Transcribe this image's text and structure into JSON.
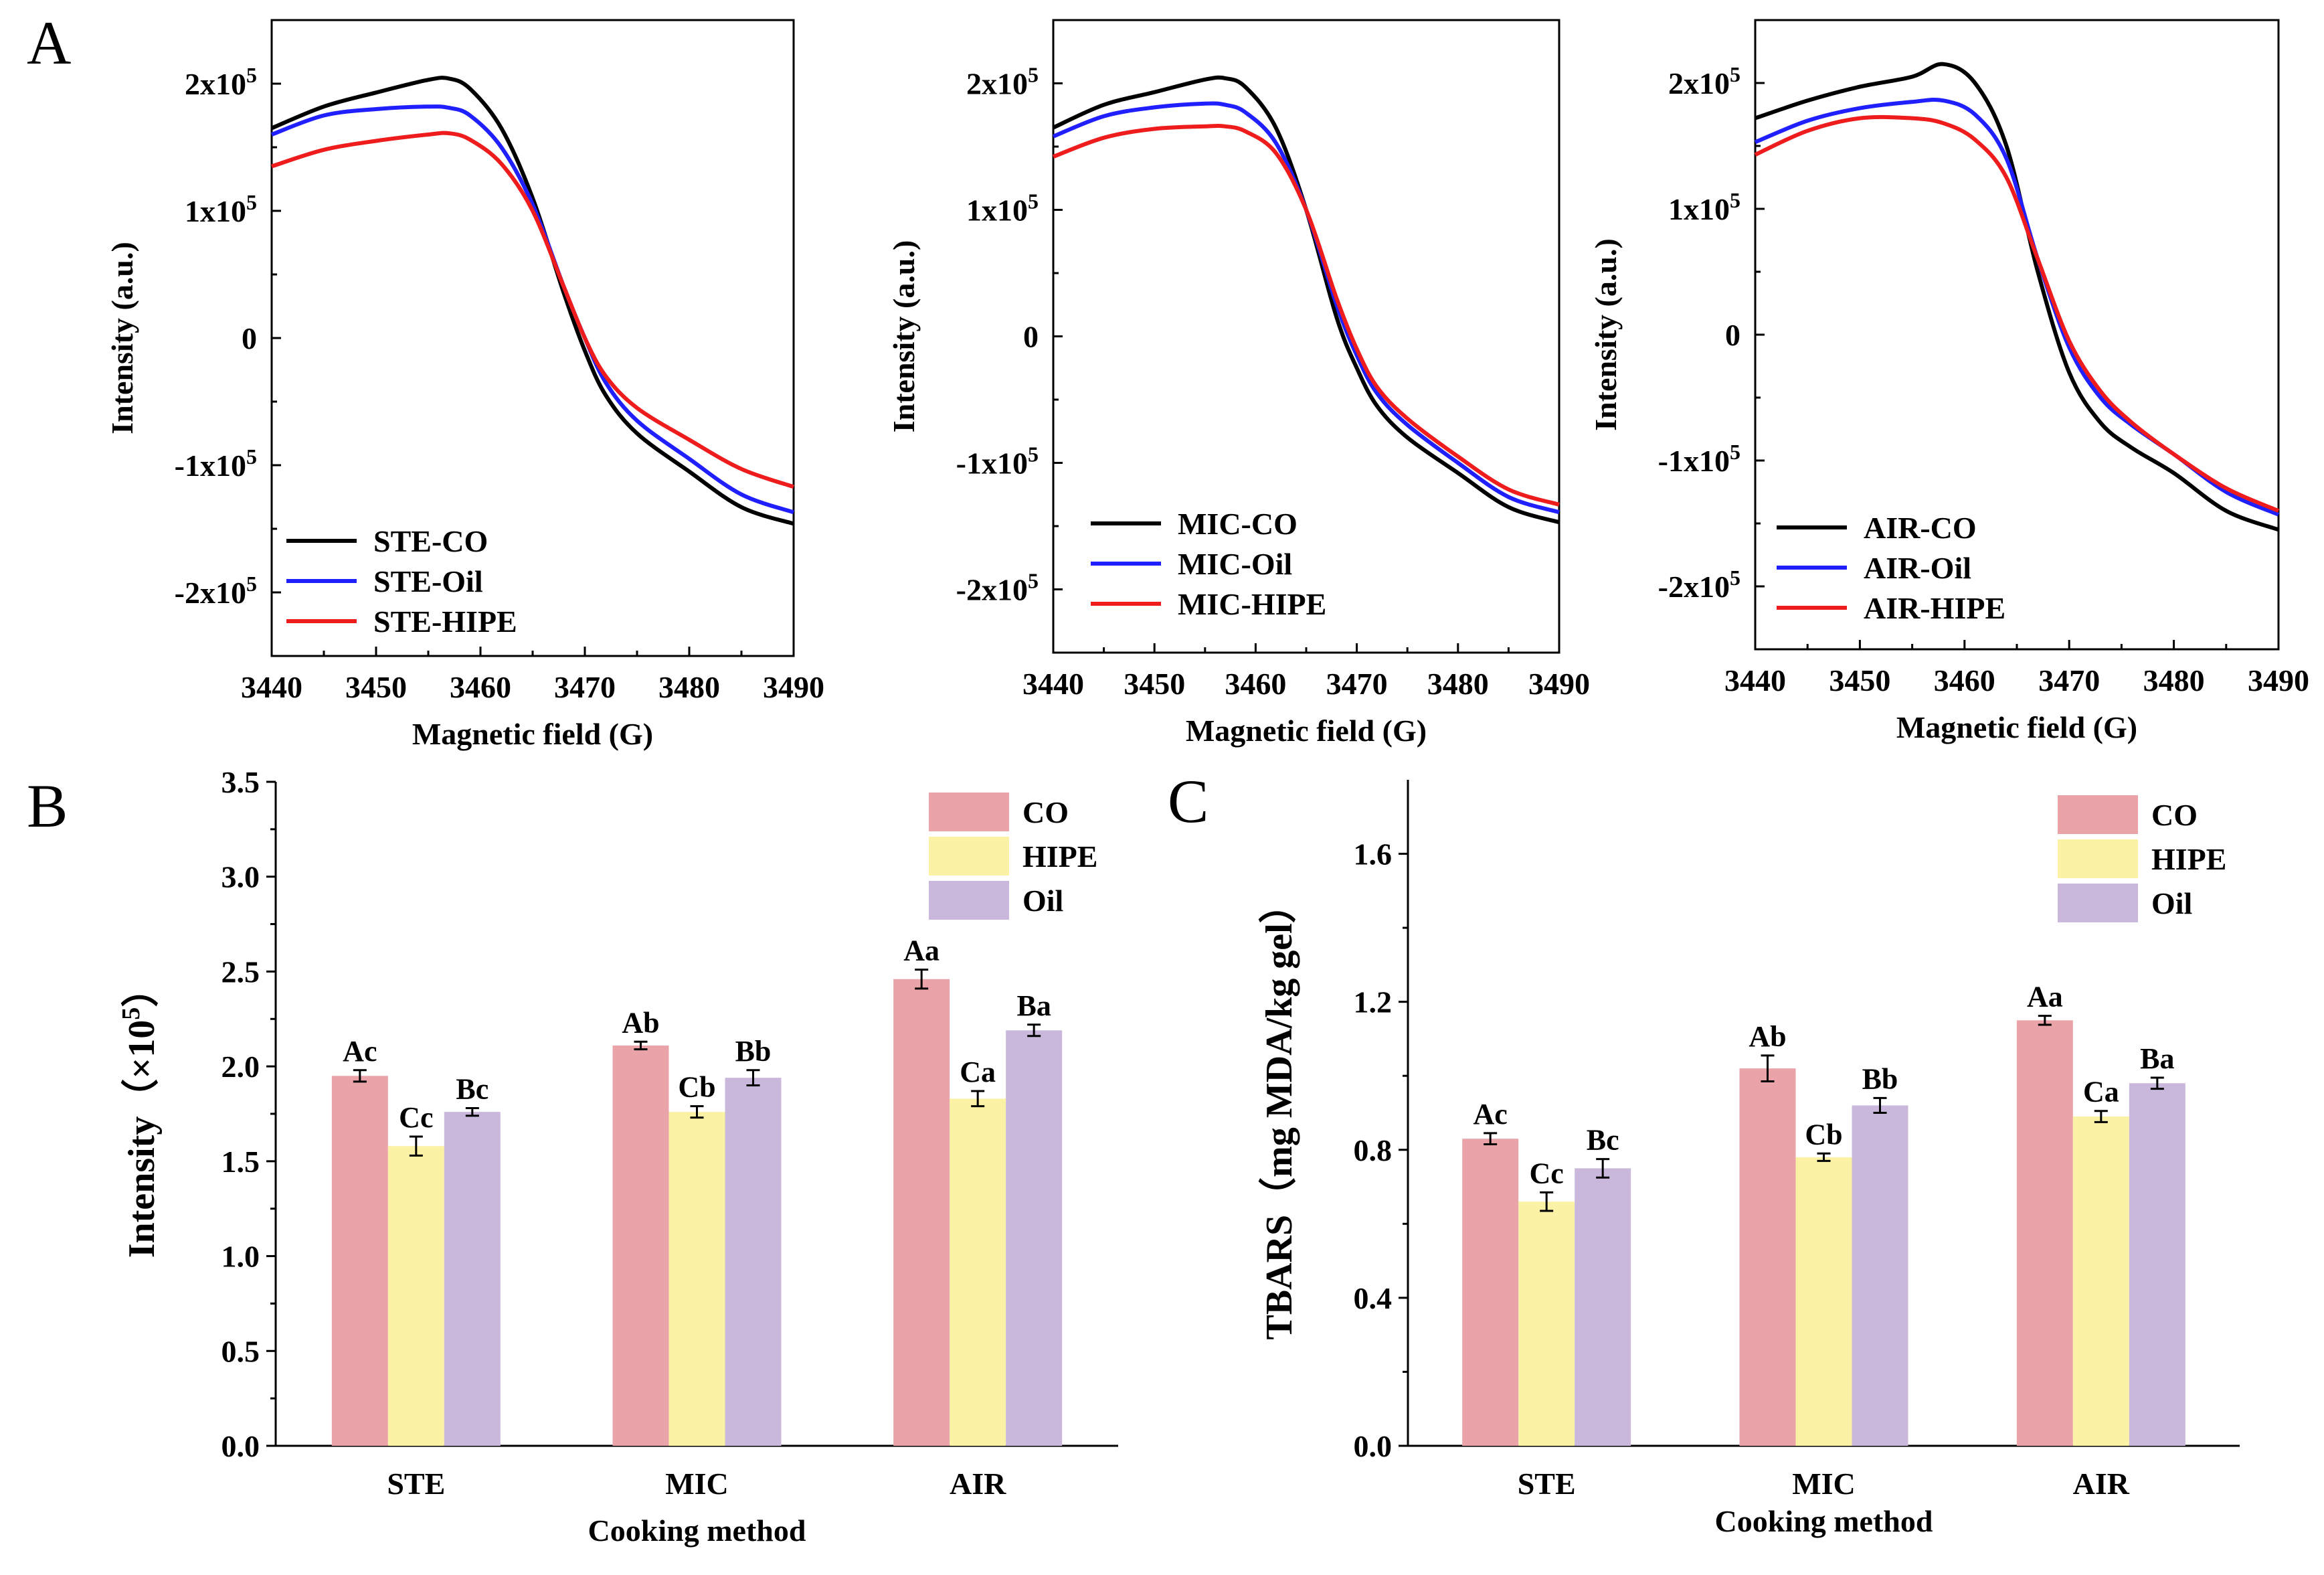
{
  "panel_labels": [
    "A",
    "B",
    "C"
  ],
  "colors": {
    "CO_line": "#000000",
    "Oil_line": "#1f1fff",
    "HIPE_line": "#ee1c1c",
    "CO_bar": "#eaa3a8",
    "HIPE_bar": "#fbf2a6",
    "Oil_bar": "#c9b8db"
  },
  "chart_data": [
    {
      "type": "line",
      "panel": "A",
      "xlabel": "Magnetic field (G)",
      "ylabel": "Intensity (a.u.)",
      "xlim": [
        3440,
        3490
      ],
      "ylim": [
        -250000,
        250000
      ],
      "xticks": [
        3440,
        3450,
        3460,
        3470,
        3480,
        3490
      ],
      "xtick_labels": [
        "3440",
        "3450",
        "3460",
        "3470",
        "3480",
        "3490"
      ],
      "yticks": [
        -200000,
        -100000,
        0,
        100000,
        200000
      ],
      "ytick_labels": [
        {
          "mant": "-2x10",
          "exp": "5"
        },
        {
          "mant": "-1x10",
          "exp": "5"
        },
        {
          "mant": "0",
          "exp": ""
        },
        {
          "mant": "1x10",
          "exp": "5"
        },
        {
          "mant": "2x10",
          "exp": "5"
        }
      ],
      "legend": [
        "STE-CO",
        "STE-Oil",
        "STE-HIPE"
      ],
      "x": [
        3440,
        3445,
        3450,
        3455,
        3457,
        3459,
        3462,
        3465,
        3468,
        3470,
        3472,
        3475,
        3480,
        3485,
        3490
      ],
      "series": [
        {
          "name": "STE-CO",
          "values": [
            165000,
            182000,
            193000,
            203000,
            204000,
            196000,
            165000,
            110000,
            35000,
            -10000,
            -45000,
            -75000,
            -105000,
            -133000,
            -146000
          ]
        },
        {
          "name": "STE-Oil",
          "values": [
            160000,
            175000,
            180000,
            182000,
            181000,
            175000,
            150000,
            105000,
            40000,
            0,
            -35000,
            -65000,
            -95000,
            -123000,
            -137000
          ]
        },
        {
          "name": "STE-HIPE",
          "values": [
            135000,
            148000,
            155000,
            160000,
            161000,
            156000,
            137000,
            100000,
            40000,
            0,
            -30000,
            -55000,
            -80000,
            -103000,
            -117000
          ]
        }
      ]
    },
    {
      "type": "line",
      "panel": "A",
      "xlabel": "Magnetic field (G)",
      "ylabel": "Intensity (a.u.)",
      "xlim": [
        3440,
        3490
      ],
      "ylim": [
        -250000,
        250000
      ],
      "xticks": [
        3440,
        3450,
        3460,
        3470,
        3480,
        3490
      ],
      "xtick_labels": [
        "3440",
        "3450",
        "3460",
        "3470",
        "3480",
        "3490"
      ],
      "yticks": [
        -200000,
        -100000,
        0,
        100000,
        200000
      ],
      "ytick_labels": [
        {
          "mant": "-2x10",
          "exp": "5"
        },
        {
          "mant": "-1x10",
          "exp": "5"
        },
        {
          "mant": "0",
          "exp": ""
        },
        {
          "mant": "1x10",
          "exp": "5"
        },
        {
          "mant": "2x10",
          "exp": "5"
        }
      ],
      "legend": [
        "MIC-CO",
        "MIC-Oil",
        "MIC-HIPE"
      ],
      "x": [
        3440,
        3445,
        3450,
        3455,
        3457,
        3459,
        3462,
        3465,
        3468,
        3470,
        3472,
        3475,
        3480,
        3485,
        3490
      ],
      "series": [
        {
          "name": "MIC-CO",
          "values": [
            165000,
            183000,
            193000,
            203000,
            204000,
            197000,
            165000,
            100000,
            15000,
            -25000,
            -55000,
            -80000,
            -108000,
            -135000,
            -147000
          ]
        },
        {
          "name": "MIC-Oil",
          "values": [
            158000,
            174000,
            181000,
            184000,
            183000,
            177000,
            153000,
            100000,
            25000,
            -15000,
            -45000,
            -70000,
            -100000,
            -127000,
            -139000
          ]
        },
        {
          "name": "MIC-HIPE",
          "values": [
            142000,
            157000,
            164000,
            166000,
            166000,
            162000,
            145000,
            100000,
            30000,
            -10000,
            -40000,
            -65000,
            -95000,
            -121000,
            -133000
          ]
        }
      ]
    },
    {
      "type": "line",
      "panel": "A",
      "xlabel": "Magnetic field (G)",
      "ylabel": "Intensity (a.u.)",
      "xlim": [
        3440,
        3490
      ],
      "ylim": [
        -250000,
        250000
      ],
      "xticks": [
        3440,
        3450,
        3460,
        3470,
        3480,
        3490
      ],
      "xtick_labels": [
        "3440",
        "3450",
        "3460",
        "3470",
        "3480",
        "3490"
      ],
      "yticks": [
        -200000,
        -100000,
        0,
        100000,
        200000
      ],
      "ytick_labels": [
        {
          "mant": "-2x10",
          "exp": "5"
        },
        {
          "mant": "-1x10",
          "exp": "5"
        },
        {
          "mant": "0",
          "exp": ""
        },
        {
          "mant": "1x10",
          "exp": "5"
        },
        {
          "mant": "2x10",
          "exp": "5"
        }
      ],
      "legend": [
        "AIR-CO",
        "AIR-Oil",
        "AIR-HIPE"
      ],
      "x": [
        3440,
        3445,
        3450,
        3455,
        3458,
        3461,
        3464,
        3467,
        3470,
        3473,
        3476,
        3480,
        3485,
        3490
      ],
      "series": [
        {
          "name": "AIR-CO",
          "values": [
            172000,
            186000,
            197000,
            205000,
            215000,
            200000,
            150000,
            50000,
            -30000,
            -70000,
            -90000,
            -110000,
            -140000,
            -155000
          ]
        },
        {
          "name": "AIR-Oil",
          "values": [
            153000,
            170000,
            180000,
            185000,
            186000,
            175000,
            140000,
            60000,
            -10000,
            -50000,
            -72000,
            -95000,
            -125000,
            -143000
          ]
        },
        {
          "name": "AIR-HIPE",
          "values": [
            143000,
            162000,
            172000,
            172000,
            168000,
            155000,
            125000,
            60000,
            -5000,
            -45000,
            -70000,
            -95000,
            -122000,
            -140000
          ]
        }
      ]
    },
    {
      "type": "bar",
      "panel": "B",
      "xlabel": "Cooking method",
      "ylabel": "Intensity（×10",
      "ylabel_sup": "5",
      "ylabel_end": "）",
      "categories": [
        "STE",
        "MIC",
        "AIR"
      ],
      "ylim": [
        0,
        3.5
      ],
      "yticks": [
        0,
        0.5,
        1,
        1.5,
        2,
        2.5,
        3,
        3.5
      ],
      "ytick_labels": [
        "0.0",
        "0.5",
        "1.0",
        "1.5",
        "2.0",
        "2.5",
        "3.0",
        "3.5"
      ],
      "legend": [
        "CO",
        "HIPE",
        "Oil"
      ],
      "series": [
        {
          "name": "CO",
          "values": [
            1.95,
            2.11,
            2.46
          ],
          "errors": [
            0.03,
            0.02,
            0.05
          ],
          "labels": [
            "Ac",
            "Ab",
            "Aa"
          ]
        },
        {
          "name": "HIPE",
          "values": [
            1.58,
            1.76,
            1.83
          ],
          "errors": [
            0.05,
            0.03,
            0.04
          ],
          "labels": [
            "Cc",
            "Cb",
            "Ca"
          ]
        },
        {
          "name": "Oil",
          "values": [
            1.76,
            1.94,
            2.19
          ],
          "errors": [
            0.02,
            0.04,
            0.03
          ],
          "labels": [
            "Bc",
            "Bb",
            "Ba"
          ]
        }
      ]
    },
    {
      "type": "bar",
      "panel": "C",
      "xlabel": "Cooking method",
      "ylabel": "TBARS（mg MDA/kg gel）",
      "categories": [
        "STE",
        "MIC",
        "AIR"
      ],
      "ylim": [
        0,
        1.8
      ],
      "yticks": [
        0,
        0.4,
        0.8,
        1.2,
        1.6
      ],
      "ytick_labels": [
        "0.0",
        "0.4",
        "0.8",
        "1.2",
        "1.6"
      ],
      "legend": [
        "CO",
        "HIPE",
        "Oil"
      ],
      "series": [
        {
          "name": "CO",
          "values": [
            0.83,
            1.02,
            1.15
          ],
          "errors": [
            0.015,
            0.035,
            0.012
          ],
          "labels": [
            "Ac",
            "Ab",
            "Aa"
          ]
        },
        {
          "name": "HIPE",
          "values": [
            0.66,
            0.78,
            0.89
          ],
          "errors": [
            0.025,
            0.01,
            0.015
          ],
          "labels": [
            "Cc",
            "Cb",
            "Ca"
          ]
        },
        {
          "name": "Oil",
          "values": [
            0.75,
            0.92,
            0.98
          ],
          "errors": [
            0.025,
            0.02,
            0.015
          ],
          "labels": [
            "Bc",
            "Bb",
            "Ba"
          ]
        }
      ]
    }
  ]
}
